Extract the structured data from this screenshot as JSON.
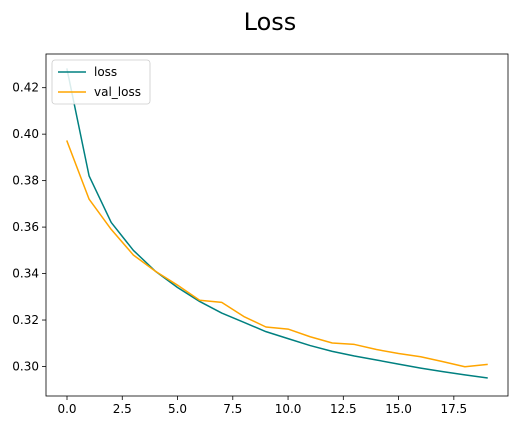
{
  "chart_data": {
    "type": "line",
    "title": "Loss",
    "xlabel": "",
    "ylabel": "",
    "xlim": [
      -0.95,
      19.95
    ],
    "ylim": [
      0.2873,
      0.4345
    ],
    "xticks": [
      0.0,
      2.5,
      5.0,
      7.5,
      10.0,
      12.5,
      15.0,
      17.5
    ],
    "xtick_labels": [
      "0.0",
      "2.5",
      "5.0",
      "7.5",
      "10.0",
      "12.5",
      "15.0",
      "17.5"
    ],
    "yticks": [
      0.3,
      0.32,
      0.34,
      0.36,
      0.38,
      0.4,
      0.42
    ],
    "ytick_labels": [
      "0.30",
      "0.32",
      "0.34",
      "0.36",
      "0.38",
      "0.40",
      "0.42"
    ],
    "grid": false,
    "legend": "top-left",
    "x": [
      0,
      1,
      2,
      3,
      4,
      5,
      6,
      7,
      8,
      9,
      10,
      11,
      12,
      13,
      14,
      15,
      16,
      17,
      18,
      19
    ],
    "series": [
      {
        "name": "loss",
        "color": "#008080",
        "values": [
          0.428,
          0.382,
          0.362,
          0.35,
          0.341,
          0.334,
          0.328,
          0.323,
          0.319,
          0.315,
          0.312,
          0.309,
          0.3065,
          0.3045,
          0.3028,
          0.301,
          0.2993,
          0.2978,
          0.2964,
          0.2951
        ]
      },
      {
        "name": "val_loss",
        "color": "#FFA500",
        "values": [
          0.397,
          0.372,
          0.359,
          0.348,
          0.341,
          0.335,
          0.3285,
          0.3276,
          0.3215,
          0.317,
          0.3161,
          0.3128,
          0.3101,
          0.3095,
          0.3073,
          0.3056,
          0.3042,
          0.3021,
          0.2999,
          0.3009
        ]
      }
    ]
  }
}
